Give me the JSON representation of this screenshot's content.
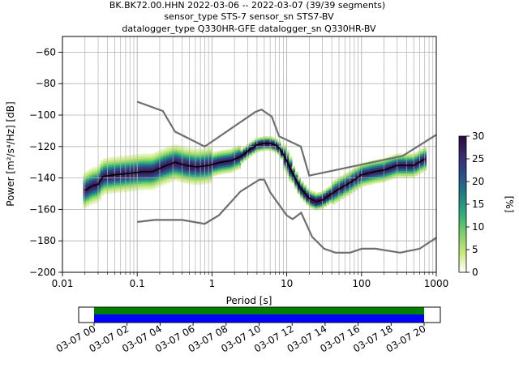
{
  "title": {
    "line1": "BK.BK72.00.HHN   2022-03-06 -- 2022-03-07  (39/39 segments)",
    "line2": "sensor_type STS-7 sensor_sn STS7-BV",
    "line3": "datalogger_type Q330HR-GFE datalogger_sn Q330HR-BV"
  },
  "chart_data": {
    "type": "heatmap",
    "subtype": "probabilistic power spectral density",
    "xlabel": "Period [s]",
    "ylabel": "Power [m²/s⁴/Hz] [dB]",
    "xscale": "log",
    "xlim": [
      0.01,
      1000
    ],
    "ylim": [
      -200,
      -50
    ],
    "x_ticks": [
      {
        "value": 0.01,
        "label": "0.01"
      },
      {
        "value": 0.1,
        "label": "0.1"
      },
      {
        "value": 1,
        "label": "1"
      },
      {
        "value": 10,
        "label": "10"
      },
      {
        "value": 100,
        "label": "100"
      },
      {
        "value": 1000,
        "label": "1000"
      }
    ],
    "y_ticks": [
      {
        "value": -60,
        "label": "−60"
      },
      {
        "value": -80,
        "label": "−80"
      },
      {
        "value": -100,
        "label": "−100"
      },
      {
        "value": -120,
        "label": "−120"
      },
      {
        "value": -140,
        "label": "−140"
      },
      {
        "value": -160,
        "label": "−160"
      },
      {
        "value": -180,
        "label": "−180"
      },
      {
        "value": -200,
        "label": "−200"
      }
    ],
    "grid": true,
    "colorbar": {
      "label": "[%]",
      "range": [
        0,
        30
      ],
      "ticks": [
        "0",
        "5",
        "10",
        "15",
        "20",
        "25",
        "30"
      ],
      "colormap": [
        "#ffffff",
        "#c6e97a",
        "#7cd06a",
        "#2fae7a",
        "#1f7f86",
        "#2c4f8a",
        "#3a2a6e",
        "#2b0a3d"
      ]
    },
    "colors": {
      "noise_model": "#6e6e6e",
      "mode": "#000000",
      "grid": "#b0b0b0"
    },
    "high_noise_model": {
      "period": [
        0.1,
        0.22,
        0.32,
        0.8,
        3.8,
        4.6,
        6.3,
        7.9,
        15.4,
        20,
        354.8,
        1000
      ],
      "power": [
        -91.5,
        -97.4,
        -110.5,
        -120,
        -98,
        -96.5,
        -101,
        -113.5,
        -120,
        -138.5,
        -126,
        -112.5
      ]
    },
    "low_noise_model": {
      "period": [
        0.1,
        0.17,
        0.4,
        0.8,
        1.24,
        2.4,
        4.3,
        5,
        6,
        10,
        12,
        15.6,
        21.9,
        31.6,
        45,
        70,
        101,
        154,
        328,
        600,
        1000
      ],
      "power": [
        -168,
        -166.7,
        -166.7,
        -169.2,
        -163.7,
        -148.6,
        -141.1,
        -141.1,
        -149,
        -163.8,
        -166.2,
        -162.1,
        -177.5,
        -185,
        -187.5,
        -187.5,
        -185,
        -185,
        -187.5,
        -185,
        -178
      ]
    },
    "mode_curve": {
      "period": [
        0.02,
        0.025,
        0.03,
        0.035,
        0.05,
        0.08,
        0.12,
        0.16,
        0.22,
        0.32,
        0.45,
        0.63,
        0.9,
        1.3,
        1.8,
        2.5,
        3.2,
        4,
        5,
        6,
        7,
        8,
        10,
        12,
        15,
        20,
        25,
        30,
        40,
        50,
        70,
        100,
        150,
        200,
        300,
        500,
        700
      ],
      "power": [
        -148,
        -145,
        -144,
        -139,
        -138,
        -137,
        -136,
        -136,
        -133,
        -130,
        -132,
        -133,
        -132,
        -130,
        -129,
        -126,
        -122,
        -119,
        -118,
        -118,
        -119,
        -121,
        -129,
        -137,
        -146,
        -153,
        -155,
        -154,
        -150,
        -147,
        -143,
        -138,
        -136,
        -135,
        -132,
        -132,
        -128
      ]
    },
    "data_coverage": {
      "ticks": [
        "03-07 00",
        "03-07 02",
        "03-07 04",
        "03-07 06",
        "03-07 08",
        "03-07 10",
        "03-07 12",
        "03-07 14",
        "03-07 16",
        "03-07 18",
        "03-07 20"
      ],
      "bars": [
        {
          "color": "#008000",
          "row": "top"
        },
        {
          "color": "#0000ff",
          "row": "bottom"
        }
      ]
    }
  }
}
